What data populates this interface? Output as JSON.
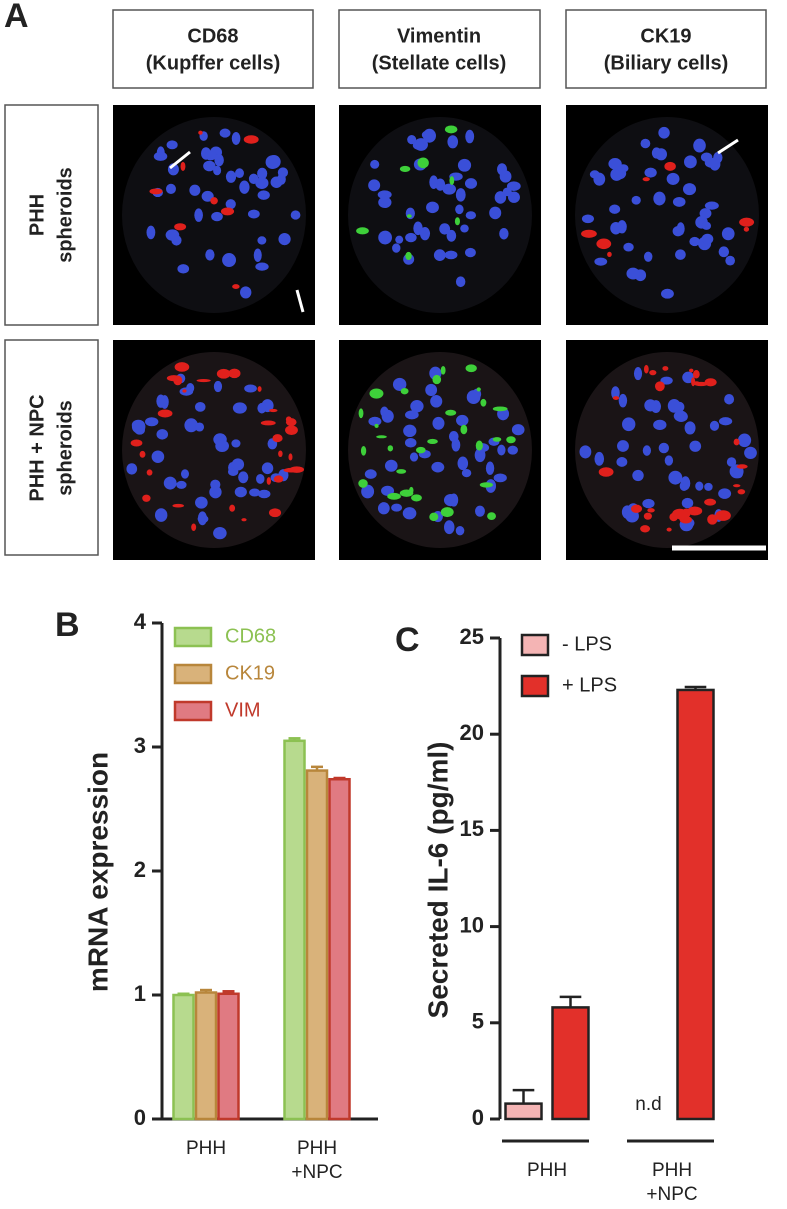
{
  "panel_a": {
    "label": "A",
    "columns": [
      {
        "title": "CD68",
        "subtitle": "(Kupffer cells)"
      },
      {
        "title": "Vimentin",
        "subtitle": "(Stellate cells)"
      },
      {
        "title": "CK19",
        "subtitle": "(Biliary cells)"
      }
    ],
    "rows": [
      [
        "PHH",
        "spheroids"
      ],
      [
        "PHH + NPC",
        "spheroids"
      ]
    ]
  },
  "chart_data": [
    {
      "label": "B",
      "type": "bar",
      "ylabel": "mRNA expression",
      "categories": [
        "PHH",
        "PHH\n+NPC"
      ],
      "series": [
        {
          "name": "CD68",
          "color": "#8cc152",
          "fill": "#b7da8e",
          "values": [
            1.0,
            3.05
          ],
          "errors": [
            0.01,
            0.02
          ]
        },
        {
          "name": "CK19",
          "color": "#b8863b",
          "fill": "#d9b27a",
          "values": [
            1.02,
            2.81
          ],
          "errors": [
            0.02,
            0.03
          ]
        },
        {
          "name": "VIM",
          "color": "#c0392b",
          "fill": "#e07a82",
          "values": [
            1.01,
            2.74
          ],
          "errors": [
            0.02,
            0.01
          ]
        }
      ],
      "ylim": [
        0,
        4
      ],
      "yticks": [
        0,
        1,
        2,
        3,
        4
      ],
      "legend": "upper left",
      "legend_text_colored": true
    },
    {
      "label": "C",
      "type": "bar",
      "ylabel": "Secreted IL-6 (pg/ml)",
      "categories": [
        "PHH",
        "PHH\n+NPC"
      ],
      "series": [
        {
          "name": "- LPS",
          "color": "#222222",
          "fill": "#f4b4b4",
          "values": [
            0.8,
            null
          ],
          "errors": [
            0.7,
            null
          ]
        },
        {
          "name": "+ LPS",
          "color": "#222222",
          "fill": "#e2302a",
          "values": [
            5.8,
            22.3
          ],
          "errors": [
            0.55,
            0.15
          ]
        }
      ],
      "annotation": "n.d",
      "ylim": [
        0,
        25
      ],
      "yticks": [
        0,
        5,
        10,
        15,
        20,
        25
      ],
      "legend": "upper left",
      "legend_text_colored": false
    }
  ]
}
